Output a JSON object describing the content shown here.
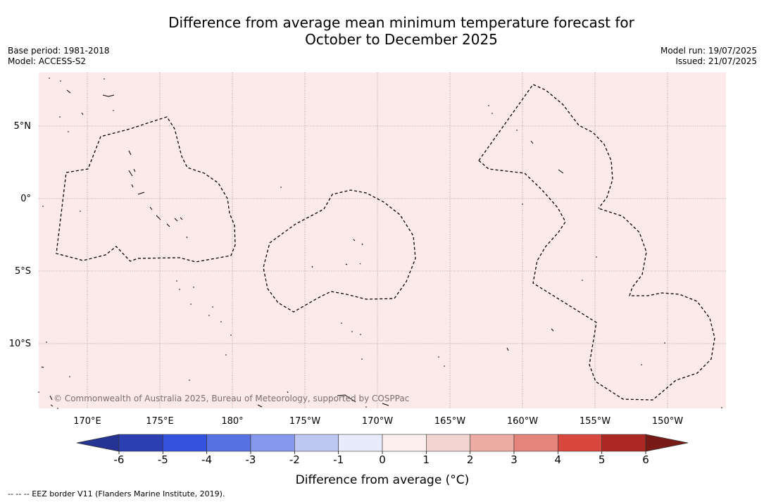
{
  "title": {
    "line1": "Difference from average mean minimum temperature forecast for",
    "line2": "October to December 2025"
  },
  "meta": {
    "base_period": "Base period: 1981-2018",
    "model": "Model: ACCESS-S2",
    "model_run": "Model run: 19/07/2025",
    "issued": "Issued: 21/07/2025"
  },
  "map": {
    "background_color": "#fbeae8",
    "fill_category": "0 to 1",
    "lat_labels": [
      "5°N",
      "0°",
      "5°S",
      "10°S"
    ],
    "lon_labels": [
      "170°E",
      "175°E",
      "180°",
      "175°W",
      "170°W",
      "165°W",
      "160°W",
      "155°W",
      "150°W"
    ],
    "copyright": "© Commonwealth of Australia 2025, Bureau of Meteorology, supported by COSPPac",
    "eez_style": "dashed"
  },
  "colorbar": {
    "ticks": [
      "-6",
      "-5",
      "-4",
      "-3",
      "-2",
      "-1",
      "0",
      "1",
      "2",
      "3",
      "4",
      "5",
      "6"
    ],
    "colors": [
      "#253494",
      "#2b3fb3",
      "#3452e0",
      "#5872e3",
      "#8598eb",
      "#bec6f2",
      "#e8ebfb",
      "#fcefed",
      "#f1d3cf",
      "#ecaca4",
      "#e4847b",
      "#d8483e",
      "#ad2923",
      "#7a1a17"
    ],
    "label": "Difference from average (°C)"
  },
  "footnote": "-- -- -- EEZ border V11 (Flanders Marine Institute, 2019)."
}
